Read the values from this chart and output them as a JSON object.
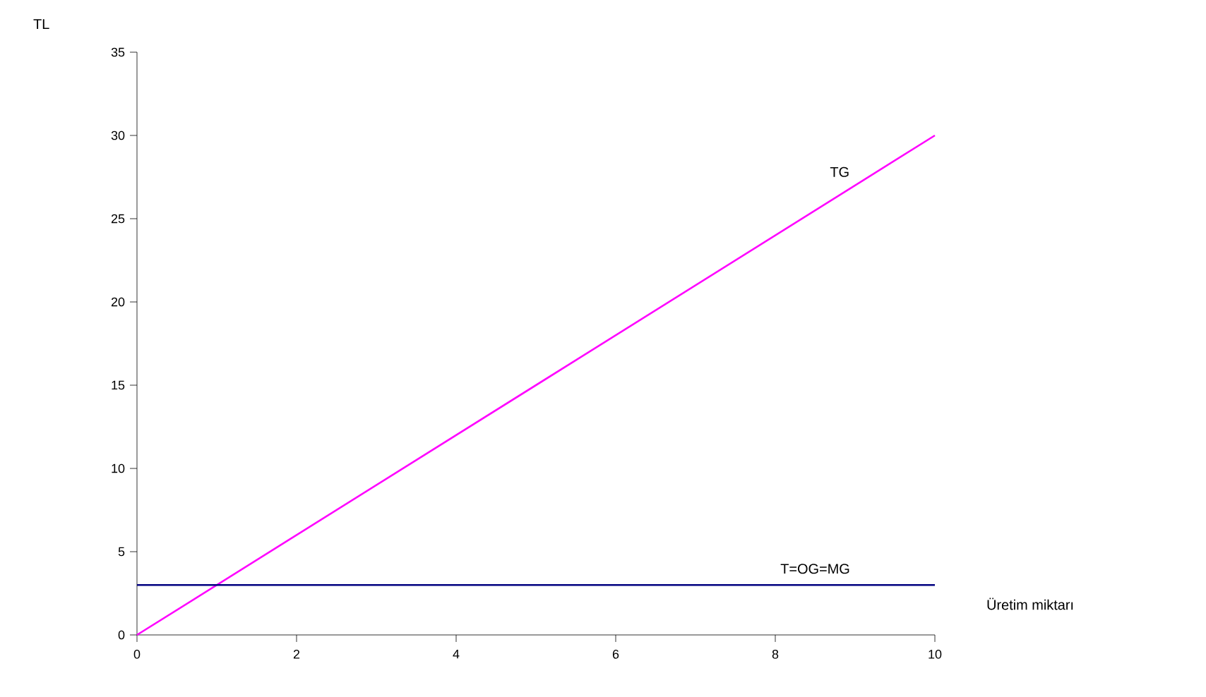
{
  "chart_data": {
    "type": "line",
    "xlabel": "Üretim miktarı",
    "ylabel": "TL",
    "x": [
      0,
      10
    ],
    "series": [
      {
        "name": "TG",
        "color": "#ff00ff",
        "values": [
          0,
          30
        ]
      },
      {
        "name": "T=OG=MG",
        "color": "#000080",
        "values": [
          3,
          3
        ]
      }
    ],
    "xlim": [
      0,
      10
    ],
    "ylim": [
      0,
      35
    ],
    "xticks": [
      0,
      2,
      4,
      6,
      8,
      10
    ],
    "yticks": [
      0,
      5,
      10,
      15,
      20,
      25,
      30,
      35
    ]
  }
}
